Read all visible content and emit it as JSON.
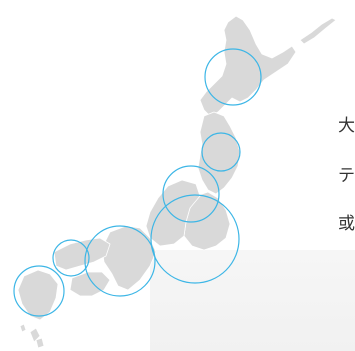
{
  "colors": {
    "land": "#d9d9d9",
    "land_stroke": "#ffffff",
    "ring": "#3db6e6",
    "background": "#ffffff",
    "text": "#333333"
  },
  "map": {
    "regions": [
      {
        "name": "hokkaido"
      },
      {
        "name": "tohoku"
      },
      {
        "name": "kanto"
      },
      {
        "name": "chubu"
      },
      {
        "name": "kinki"
      },
      {
        "name": "chugoku"
      },
      {
        "name": "shikoku"
      },
      {
        "name": "kyushu"
      }
    ],
    "highlight_circles": [
      {
        "region": "hokkaido"
      },
      {
        "region": "tohoku"
      },
      {
        "region": "niigata"
      },
      {
        "region": "kanto"
      },
      {
        "region": "kinki"
      },
      {
        "region": "chugoku"
      },
      {
        "region": "kyushu"
      }
    ]
  },
  "side_text": {
    "line1": "大",
    "line2": "テ",
    "line3": "或"
  }
}
